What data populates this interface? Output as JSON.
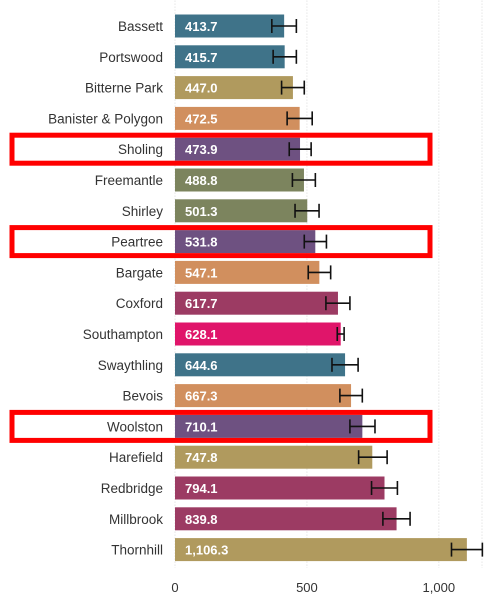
{
  "chart_data": {
    "type": "bar",
    "orientation": "horizontal",
    "categories": [
      "Bassett",
      "Portswood",
      "Bitterne Park",
      "Banister & Polygon",
      "Sholing",
      "Freemantle",
      "Shirley",
      "Peartree",
      "Bargate",
      "Coxford",
      "Southampton",
      "Swaythling",
      "Bevois",
      "Woolston",
      "Harefield",
      "Redbridge",
      "Millbrook",
      "Thornhill"
    ],
    "values": [
      413.7,
      415.7,
      447.0,
      472.5,
      473.9,
      488.8,
      501.3,
      531.8,
      547.1,
      617.7,
      628.1,
      644.6,
      667.3,
      710.1,
      747.8,
      794.1,
      839.8,
      1106.3
    ],
    "value_labels": [
      "413.7",
      "415.7",
      "447.0",
      "472.5",
      "473.9",
      "488.8",
      "501.3",
      "531.8",
      "547.1",
      "617.7",
      "628.1",
      "644.6",
      "667.3",
      "710.1",
      "747.8",
      "794.1",
      "839.8",
      "1,106.3"
    ],
    "error_low": [
      367,
      372,
      404,
      425,
      433,
      445,
      455,
      490,
      505,
      572,
      615,
      595,
      625,
      663,
      696,
      745,
      788,
      1048
    ],
    "error_high": [
      460,
      460,
      490,
      520,
      516,
      532,
      546,
      574,
      590,
      663,
      641,
      694,
      710,
      758,
      804,
      843,
      891,
      1165
    ],
    "bar_colors": [
      "#3f7389",
      "#3f7389",
      "#b09a5e",
      "#d18f5e",
      "#6e5181",
      "#7c845e",
      "#7c845e",
      "#6e5181",
      "#d18f5e",
      "#9c3b63",
      "#e0156a",
      "#3f7389",
      "#d18f5e",
      "#6e5181",
      "#b09a5e",
      "#9c3b63",
      "#9c3b63",
      "#b09a5e"
    ],
    "highlighted": [
      "Sholing",
      "Peartree",
      "Woolston"
    ],
    "highlight_color": "#ff0000",
    "xlim": [
      0,
      1175
    ],
    "x_ticks": [
      0,
      500,
      1000
    ],
    "x_tick_labels": [
      "0",
      "500",
      "1,000"
    ],
    "gridlines": "vertical-dotted",
    "title": "",
    "xlabel": "",
    "ylabel": ""
  }
}
